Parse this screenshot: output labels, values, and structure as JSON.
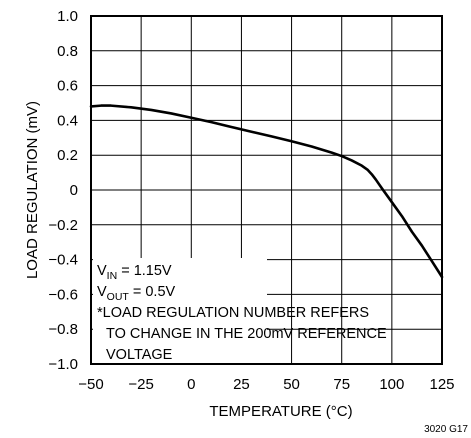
{
  "chart_data": {
    "type": "line",
    "xlabel": "TEMPERATURE (°C)",
    "ylabel": "LOAD REGULATION (mV)",
    "xlim": [
      -50,
      125
    ],
    "ylim": [
      -1.0,
      1.0
    ],
    "x_ticks": [
      "−50",
      "−25",
      "0",
      "25",
      "50",
      "75",
      "100",
      "125"
    ],
    "y_ticks": [
      "1.0",
      "0.8",
      "0.6",
      "0.4",
      "0.2",
      "0",
      "−0.2",
      "−0.4",
      "−0.6",
      "−0.8",
      "−1.0"
    ],
    "grid": true,
    "series": [
      {
        "x": [
          -50,
          -45,
          -40,
          -30,
          -20,
          -10,
          0,
          10,
          20,
          30,
          40,
          50,
          60,
          70,
          75,
          80,
          85,
          88,
          90,
          92,
          95,
          100,
          105,
          110,
          115,
          120,
          125
        ],
        "y": [
          0.48,
          0.485,
          0.485,
          0.475,
          0.46,
          0.44,
          0.415,
          0.39,
          0.362,
          0.335,
          0.308,
          0.28,
          0.25,
          0.215,
          0.195,
          0.17,
          0.14,
          0.115,
          0.09,
          0.06,
          0.01,
          -0.07,
          -0.15,
          -0.24,
          -0.32,
          -0.41,
          -0.5
        ]
      }
    ],
    "annotations": {
      "vin": {
        "main": "V",
        "sub": "IN",
        "rest": " = 1.15V"
      },
      "vout": {
        "main": "V",
        "sub": "OUT",
        "rest": " = 0.5V"
      },
      "note_line1": "*LOAD REGULATION NUMBER REFERS",
      "note_line2": "TO CHANGE IN THE 200mV REFERENCE",
      "note_line3": "VOLTAGE"
    },
    "figure_number": "3020 G17"
  }
}
